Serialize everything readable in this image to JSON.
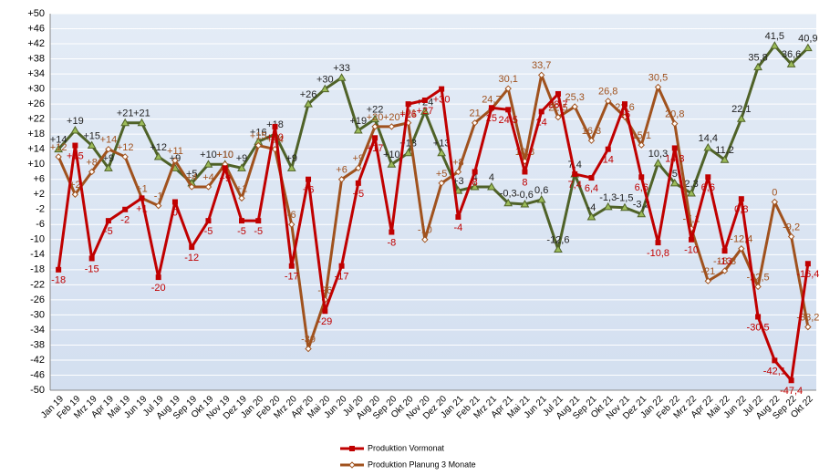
{
  "chart_data": {
    "type": "line",
    "categories": [
      "Jan 19",
      "Feb 19",
      "Mrz 19",
      "Apr 19",
      "Mai 19",
      "Jun 19",
      "Jul 19",
      "Aug 19",
      "Sep 19",
      "Okt 19",
      "Nov 19",
      "Dez 19",
      "Jan 20",
      "Feb 20",
      "Mrz 20",
      "Apr 20",
      "Mai 20",
      "Jun 20",
      "Jul 20",
      "Aug 20",
      "Sep 20",
      "Okt 20",
      "Nov 20",
      "Dez 20",
      "Jan 21",
      "Feb 21",
      "Mrz 21",
      "Apr 21",
      "Mai 21",
      "Jun 21",
      "Jul 21",
      "Aug 21",
      "Sep 21",
      "Okt 21",
      "Nov 21",
      "Dez 21",
      "Jan 22",
      "Feb 22",
      "Mrz 22",
      "Apr 22",
      "Mai 22",
      "Jun 22",
      "Jul 22",
      "Aug 22",
      "Sep 22",
      "Okt 22"
    ],
    "series": [
      {
        "name": "Produktion Vormonat",
        "color": "#c00000",
        "marker": "square",
        "values": [
          -18,
          15,
          -15,
          -5,
          -2,
          1,
          -20,
          0,
          -12,
          -5,
          9,
          -5,
          -5,
          20,
          -17,
          6,
          -29,
          -17,
          5,
          17,
          -8,
          26,
          27,
          30,
          -4,
          8,
          25,
          24.5,
          8,
          24,
          28.7,
          7.4,
          6.4,
          14,
          26,
          6.6,
          -10.8,
          14.3,
          -10,
          6.6,
          -13,
          0.8,
          -30.5,
          -42.1,
          -47.4,
          -16.4
        ],
        "value_labels": [
          "-18",
          "+15",
          "-15",
          "-5",
          "-2",
          "+1",
          "-20",
          "0",
          "-12",
          "-5",
          "+9",
          "-5",
          "-5",
          "+20",
          "-17",
          "+6",
          "-29",
          "-17",
          "+5",
          "+17",
          "-8",
          "+26",
          "+27",
          "+30",
          "-4",
          "8",
          "25",
          "24,5",
          "8",
          "24",
          "28,7",
          "7,4",
          "6,4",
          "14",
          "26",
          "6,6",
          "-10,8",
          "14,3",
          "-10",
          "6,6",
          "-13",
          "0,8",
          "-30,5",
          "-42,1",
          "-47,4",
          "-16,4"
        ]
      },
      {
        "name": "Produktion Planung 3 Monate",
        "color": "#a0521e",
        "marker": "diamond",
        "values": [
          12,
          2,
          8,
          14,
          12,
          1,
          -1,
          11,
          4,
          4,
          10,
          1,
          15,
          14,
          -6,
          -39,
          -26,
          6,
          9,
          20,
          20,
          21,
          -10,
          5,
          8,
          21,
          24.7,
          30.1,
          10.8,
          33.7,
          22.5,
          25.3,
          16.3,
          26.8,
          22.6,
          15.1,
          30.5,
          20.8,
          -7.1,
          -21,
          -18.3,
          -12.4,
          -22.5,
          0,
          -9.2,
          -33.2
        ],
        "value_labels": [
          "+12",
          "+2",
          "+8",
          "+14",
          "+12",
          "+1",
          "-1",
          "+11",
          "+4",
          "+4",
          "+10",
          "+1",
          "+15",
          "+14",
          "-6",
          "-39",
          "-26",
          "+6",
          "+9",
          "+20",
          "+20",
          "+21",
          "-10",
          "+5",
          "+8",
          "21",
          "24,7",
          "30,1",
          "10,8",
          "33,7",
          "22,5",
          "25,3",
          "16,3",
          "26,8",
          "22,6",
          "15,1",
          "30,5",
          "20,8",
          "-7,1",
          "-21",
          "-18,3",
          "-12,4",
          "-22,5",
          "0",
          "-9,2",
          "-33,2"
        ]
      },
      {
        "color": "#4f6228",
        "marker": "triangle",
        "values": [
          14,
          19,
          15,
          9,
          21,
          21,
          12,
          9,
          5,
          10,
          10,
          9,
          16,
          18,
          9,
          26,
          30,
          33,
          19,
          22,
          10,
          13,
          24,
          13,
          3,
          4,
          4,
          -0.3,
          -0.6,
          0.6,
          -12.6,
          7.4,
          -4,
          -1.3,
          -1.5,
          -3.2,
          10.3,
          5,
          2.3,
          14.4,
          11.2,
          22.1,
          35.8,
          41.5,
          36.6,
          40.9
        ],
        "value_labels": [
          "+14",
          "+19",
          "+15",
          "+9",
          "+21",
          "+21",
          "+12",
          "+9",
          "+5",
          "+10",
          "+10",
          "+9",
          "+16",
          "+18",
          "+9",
          "+26",
          "+30",
          "+33",
          "+19",
          "+22",
          "+10",
          "+13",
          "+24",
          "+13",
          "+3",
          "4",
          "4",
          "-0,3",
          "-0,6",
          "0,6",
          "-12,6",
          "7,4",
          "-4",
          "-1,3",
          "-1,5",
          "-3,2",
          "10,3",
          "5",
          "2,3",
          "14,4",
          "11,2",
          "22,1",
          "35,8",
          "41,5",
          "36,6",
          "40,9"
        ]
      }
    ],
    "ylim": [
      -50,
      50
    ],
    "yticks": [
      -50,
      -46,
      -42,
      -38,
      -34,
      -30,
      -26,
      -22,
      -18,
      -14,
      -10,
      -6,
      -2,
      {
        "value": 2,
        "label": "+2"
      },
      {
        "value": 6,
        "label": "+6"
      },
      {
        "value": 10,
        "label": "+10"
      },
      {
        "value": 14,
        "label": "+14"
      },
      {
        "value": 18,
        "label": "+18"
      },
      {
        "value": 22,
        "label": "+22"
      },
      {
        "value": 26,
        "label": "+26"
      },
      {
        "value": 30,
        "label": "+30"
      },
      {
        "value": 34,
        "label": "+34"
      },
      {
        "value": 38,
        "label": "+38"
      },
      {
        "value": 42,
        "label": "+42"
      },
      {
        "value": 46,
        "label": "+46"
      },
      {
        "value": 50,
        "label": "+50"
      }
    ],
    "grid": true
  }
}
